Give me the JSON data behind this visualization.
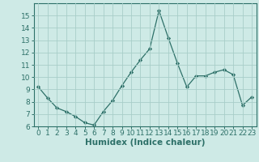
{
  "x": [
    0,
    1,
    2,
    3,
    4,
    5,
    6,
    7,
    8,
    9,
    10,
    11,
    12,
    13,
    14,
    15,
    16,
    17,
    18,
    19,
    20,
    21,
    22,
    23
  ],
  "y": [
    9.2,
    8.3,
    7.5,
    7.2,
    6.8,
    6.3,
    6.1,
    7.2,
    8.1,
    9.3,
    10.4,
    11.4,
    12.3,
    15.4,
    13.2,
    11.1,
    9.2,
    10.1,
    10.1,
    10.4,
    10.6,
    10.2,
    7.7,
    8.4
  ],
  "line_color": "#2d7068",
  "marker": "D",
  "marker_size": 2.2,
  "bg_color": "#ceeae6",
  "grid_color": "#a8cec9",
  "xlabel": "Humidex (Indice chaleur)",
  "ylim": [
    6,
    16
  ],
  "xlim": [
    -0.5,
    23.5
  ],
  "yticks": [
    6,
    7,
    8,
    9,
    10,
    11,
    12,
    13,
    14,
    15
  ],
  "xticks": [
    0,
    1,
    2,
    3,
    4,
    5,
    6,
    7,
    8,
    9,
    10,
    11,
    12,
    13,
    14,
    15,
    16,
    17,
    18,
    19,
    20,
    21,
    22,
    23
  ],
  "tick_label_fontsize": 6.5,
  "xlabel_fontsize": 7.5
}
